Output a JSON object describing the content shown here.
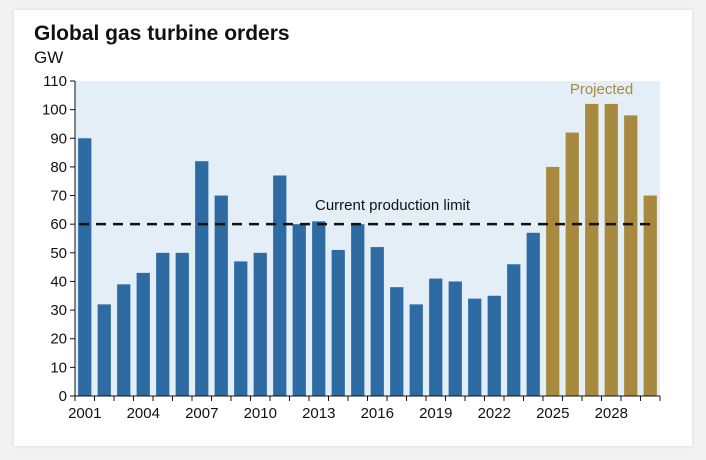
{
  "chart_data": {
    "type": "bar",
    "title": "Global gas turbine orders",
    "ylabel": "GW",
    "xlabel": "",
    "ylim": [
      0,
      110
    ],
    "yticks": [
      0,
      10,
      20,
      30,
      40,
      50,
      60,
      70,
      80,
      90,
      100,
      110
    ],
    "x": [
      2001,
      2002,
      2003,
      2004,
      2005,
      2006,
      2007,
      2008,
      2009,
      2010,
      2011,
      2012,
      2013,
      2014,
      2015,
      2016,
      2017,
      2018,
      2019,
      2020,
      2021,
      2022,
      2023,
      2024,
      2025,
      2026,
      2027,
      2028,
      2029,
      2030
    ],
    "xtick_labels": [
      "2001",
      "2004",
      "2007",
      "2010",
      "2013",
      "2016",
      "2019",
      "2022",
      "2025",
      "2028"
    ],
    "values": [
      90,
      32,
      39,
      43,
      50,
      50,
      82,
      70,
      47,
      50,
      77,
      60,
      61,
      51,
      60,
      52,
      38,
      32,
      41,
      40,
      34,
      35,
      46,
      57,
      80,
      92,
      102,
      102,
      98,
      70
    ],
    "projected_from": 2025,
    "annotations": {
      "reference_line": {
        "value": 60,
        "label": "Current production limit"
      },
      "projected_label": "Projected"
    },
    "grid": false,
    "colors": {
      "historical": "#2f6ba3",
      "projected": "#a88a3e",
      "plot_background": "#e4eef6",
      "reference_line": "#111111"
    }
  }
}
